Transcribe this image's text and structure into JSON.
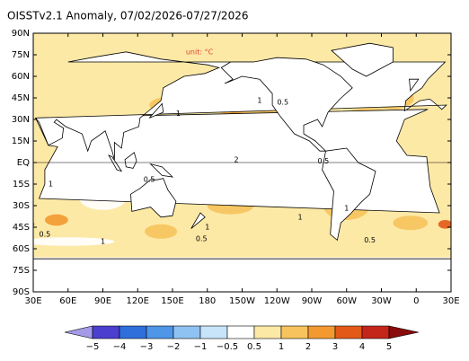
{
  "header": {
    "title": "OISSTv2.1 Anomaly, 07/02/2026-07/27/2026",
    "unit": "unit: °C"
  },
  "map": {
    "lat_labels": [
      "90N",
      "75N",
      "60N",
      "45N",
      "30N",
      "15N",
      "EQ",
      "15S",
      "30S",
      "45S",
      "60S",
      "75S",
      "90S"
    ],
    "lon_labels": [
      "30E",
      "60E",
      "90E",
      "120E",
      "150E",
      "180",
      "150W",
      "120W",
      "90W",
      "60W",
      "30W",
      "0",
      "30E"
    ],
    "contour_labels": [
      "1",
      "0.5",
      "1",
      "2",
      "0.5",
      "1",
      "0.5",
      "1",
      "0.5",
      "1",
      "0.5",
      "1",
      "1",
      "0.5"
    ]
  },
  "colorbar": {
    "labels": [
      "−5",
      "−4",
      "−3",
      "−2",
      "−1",
      "−0.5",
      "0.5",
      "1",
      "2",
      "3",
      "4",
      "5"
    ],
    "colors": [
      "#a49be8",
      "#4b3fcf",
      "#2f6fdc",
      "#4f95e8",
      "#8ec2f2",
      "#c8e4fa",
      "#ffffff",
      "#fde9a6",
      "#f6c35c",
      "#f29a30",
      "#e35a18",
      "#c5261a",
      "#8a0b0b"
    ]
  }
}
